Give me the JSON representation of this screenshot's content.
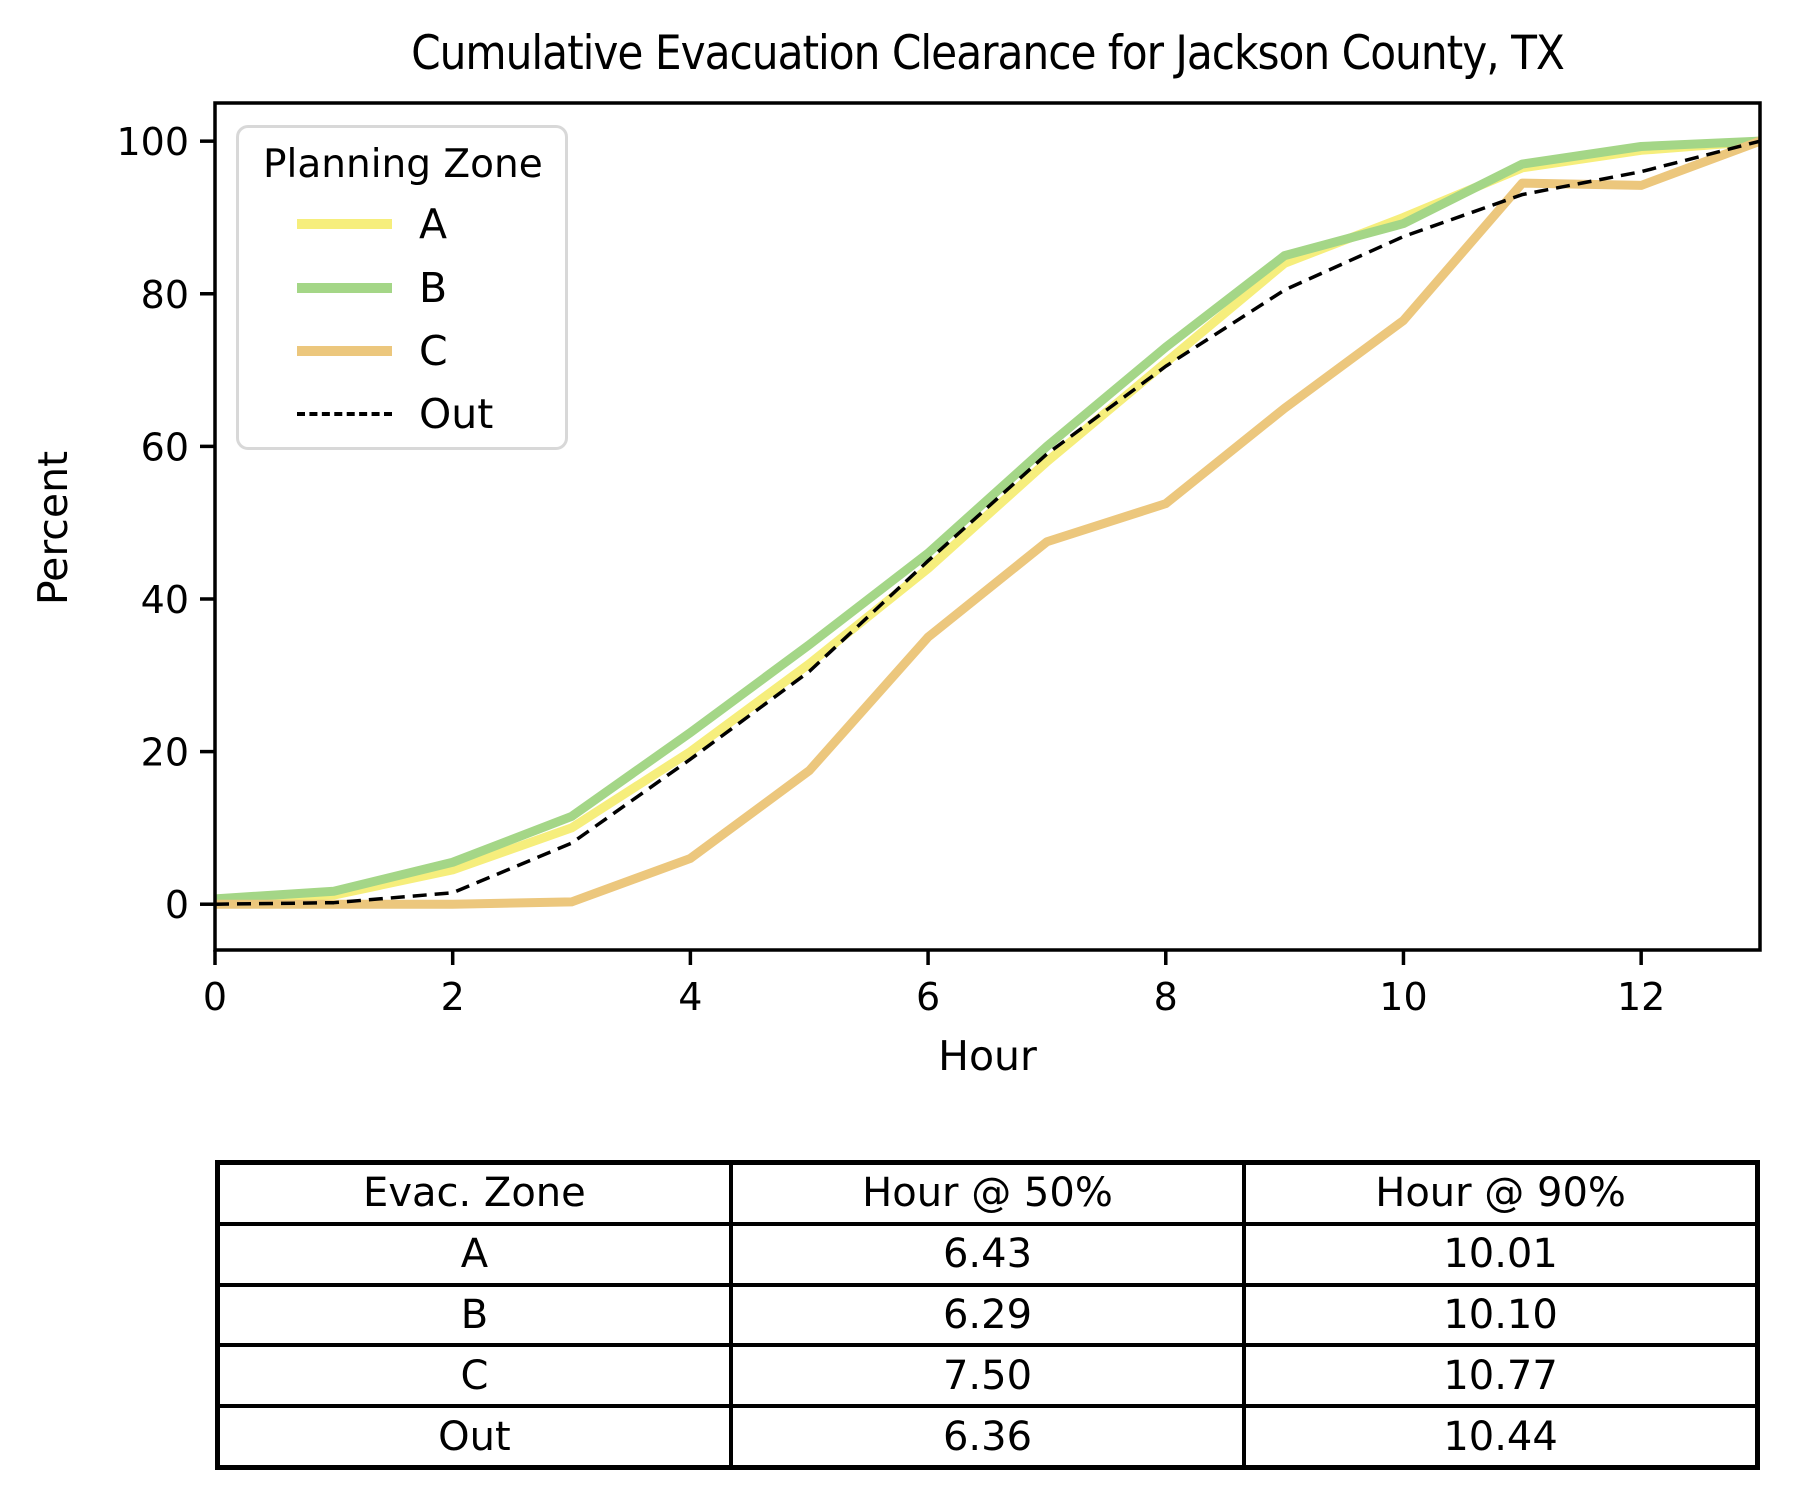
{
  "figure": {
    "title": "Cumulative Evacuation Clearance for Jackson County, TX"
  },
  "chart_data": {
    "type": "line",
    "title": "Cumulative Evacuation Clearance for Jackson County, TX",
    "xlabel": "Hour",
    "ylabel": "Percent",
    "xlim": [
      0,
      13
    ],
    "ylim": [
      -6,
      105
    ],
    "x_ticks": [
      0,
      2,
      4,
      6,
      8,
      10,
      12
    ],
    "y_ticks": [
      0,
      20,
      40,
      60,
      80,
      100
    ],
    "grid": false,
    "legend_title": "Planning Zone",
    "legend_position": "upper left",
    "x": [
      0,
      1,
      2,
      3,
      4,
      5,
      6,
      7,
      8,
      9,
      10,
      11,
      12,
      13
    ],
    "series": [
      {
        "name": "A",
        "color": "#f6ee7c",
        "style": "solid",
        "linewidth": 9,
        "values": [
          0.5,
          1.2,
          4.5,
          10.0,
          20.0,
          31.5,
          44.0,
          58.0,
          71.0,
          84.0,
          90.0,
          96.5,
          98.8,
          100.0
        ]
      },
      {
        "name": "B",
        "color": "#a4d687",
        "style": "solid",
        "linewidth": 9,
        "values": [
          0.7,
          1.7,
          5.5,
          11.5,
          22.5,
          34.0,
          46.0,
          60.0,
          73.0,
          85.0,
          89.2,
          97.0,
          99.3,
          100.0
        ]
      },
      {
        "name": "C",
        "color": "#ecc77d",
        "style": "solid",
        "linewidth": 9,
        "values": [
          0.0,
          0.0,
          0.0,
          0.3,
          6.0,
          17.5,
          35.0,
          47.5,
          52.5,
          65.0,
          76.5,
          94.5,
          94.2,
          100.0
        ]
      },
      {
        "name": "Out",
        "color": "#000000",
        "style": "dashed",
        "linewidth": 3.5,
        "values": [
          0.0,
          0.2,
          1.5,
          8.0,
          19.0,
          30.5,
          45.0,
          59.0,
          70.5,
          80.5,
          87.5,
          93.0,
          96.0,
          100.0
        ]
      }
    ]
  },
  "table": {
    "headers": [
      "Evac. Zone",
      "Hour @ 50%",
      "Hour @ 90%"
    ],
    "rows": [
      {
        "zone": "A",
        "h50": "6.43",
        "h90": "10.01"
      },
      {
        "zone": "B",
        "h50": "6.29",
        "h90": "10.10"
      },
      {
        "zone": "C",
        "h50": "7.50",
        "h90": "10.77"
      },
      {
        "zone": "Out",
        "h50": "6.36",
        "h90": "10.44"
      }
    ]
  }
}
